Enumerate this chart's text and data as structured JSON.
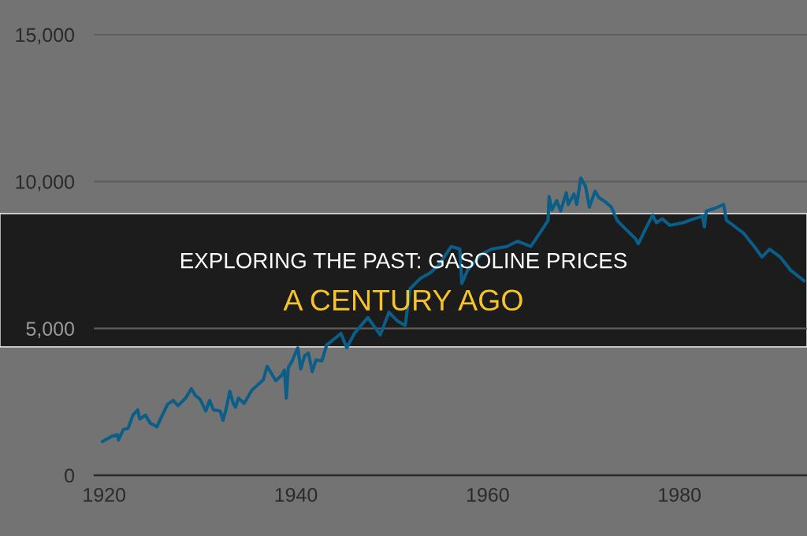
{
  "chart_data": {
    "type": "line",
    "title": "EXPLORING THE PAST: GASOLINE PRICES",
    "subtitle": "A CENTURY AGO",
    "x": [
      1919.8,
      1920.8,
      1921.4,
      1921.5,
      1922.0,
      1922.5,
      1923.0,
      1923.5,
      1923.7,
      1924.3,
      1924.8,
      1925.5,
      1925.8,
      1926.6,
      1927.2,
      1927.7,
      1928.5,
      1929.1,
      1929.5,
      1930.0,
      1930.6,
      1931.0,
      1931.4,
      1932.1,
      1932.4,
      1932.7,
      1933.1,
      1933.5,
      1933.7,
      1934.0,
      1934.6,
      1935.4,
      1936.2,
      1936.6,
      1937.0,
      1937.9,
      1938.5,
      1938.8,
      1939.0,
      1939.2,
      1939.6,
      1940.2,
      1940.5,
      1940.9,
      1941.3,
      1941.7,
      1942.1,
      1942.7,
      1943.2,
      1944.7,
      1945.3,
      1946.1,
      1947.5,
      1948.8,
      1949.7,
      1950.6,
      1951.4,
      1951.9,
      1953.0,
      1954.0,
      1954.9,
      1956.2,
      1957.1,
      1957.3,
      1957.9,
      1959.3,
      1960.4,
      1962.0,
      1963.1,
      1964.5,
      1965.6,
      1966.3,
      1966.4,
      1966.7,
      1967.2,
      1967.6,
      1968.2,
      1968.4,
      1969.0,
      1969.3,
      1969.7,
      1970.2,
      1970.6,
      1971.2,
      1971.6,
      1972.1,
      1972.9,
      1973.5,
      1974.3,
      1975.4,
      1975.7,
      1976.5,
      1977.2,
      1977.6,
      1978.2,
      1979.0,
      1980.4,
      1981.5,
      1982.4,
      1982.6,
      1982.8,
      1983.7,
      1984.6,
      1984.9,
      1985.6,
      1986.7,
      1987.8,
      1988.6,
      1989.4,
      1990.5,
      1991.6,
      1993.0
    ],
    "series": [
      {
        "color": "#0b5e87",
        "values": [
          1150,
          1330,
          1380,
          1200,
          1560,
          1600,
          2050,
          2230,
          1920,
          2050,
          1780,
          1650,
          1870,
          2410,
          2550,
          2370,
          2630,
          2950,
          2720,
          2590,
          2190,
          2550,
          2230,
          2190,
          1870,
          2230,
          2860,
          2410,
          2320,
          2630,
          2450,
          2900,
          3130,
          3260,
          3710,
          3220,
          3400,
          3580,
          2630,
          3660,
          3890,
          4340,
          3620,
          4070,
          4160,
          3530,
          3930,
          3890,
          4430,
          4830,
          4340,
          4830,
          5370,
          4780,
          5550,
          5250,
          5100,
          6350,
          6710,
          6890,
          7160,
          7790,
          7700,
          6530,
          6980,
          7520,
          7700,
          7790,
          7970,
          7790,
          8330,
          8680,
          9490,
          9040,
          9350,
          9000,
          9620,
          9220,
          9580,
          9220,
          10120,
          9850,
          9130,
          9670,
          9450,
          9350,
          9130,
          8680,
          8410,
          8060,
          7880,
          8410,
          8860,
          8600,
          8730,
          8510,
          8600,
          8730,
          8820,
          8460,
          9000,
          9090,
          9220,
          8680,
          8510,
          8240,
          7790,
          7430,
          7700,
          7430,
          6980,
          6620
        ]
      }
    ],
    "xlim": [
      1919,
      1993.3
    ],
    "ylim": [
      0,
      15000
    ],
    "xticks": [
      1920,
      1940,
      1960,
      1980
    ],
    "yticks": [
      0,
      {
        "value": 5000,
        "label": "5,000"
      },
      {
        "value": 10000,
        "label": "10,000"
      },
      {
        "value": 15000,
        "label": "15,000"
      }
    ],
    "grid": "y"
  }
}
